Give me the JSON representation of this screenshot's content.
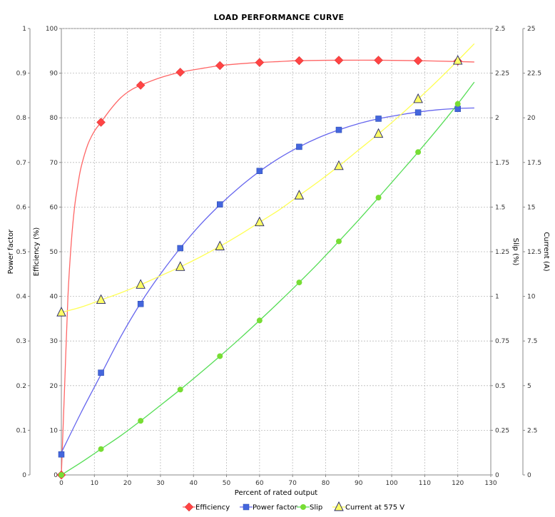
{
  "chart_data": {
    "type": "line",
    "title": "LOAD PERFORMANCE CURVE",
    "xlabel": "Percent of rated output",
    "xlim": [
      0,
      130
    ],
    "xticks": [
      0,
      10,
      20,
      30,
      40,
      50,
      60,
      70,
      80,
      90,
      100,
      110,
      120,
      130
    ],
    "grid": true,
    "legend_position": "bottom-center",
    "axes": {
      "power_factor": {
        "label": "Power factor",
        "side": "left-outer",
        "lim": [
          0,
          1
        ],
        "ticks": [
          0,
          0.1,
          0.2,
          0.3,
          0.4,
          0.5,
          0.6,
          0.7,
          0.8,
          0.9,
          1
        ]
      },
      "efficiency": {
        "label": "Efficiency (%)",
        "side": "left-inner",
        "lim": [
          0,
          100
        ],
        "ticks": [
          0,
          10,
          20,
          30,
          40,
          50,
          60,
          70,
          80,
          90,
          100
        ]
      },
      "slip": {
        "label": "Slip (%)",
        "side": "right-inner",
        "lim": [
          0,
          2.5
        ],
        "ticks": [
          "0",
          "0.25",
          "0.5",
          "0.75",
          "1",
          "1.25",
          "1.5",
          "1.75",
          "2",
          "2.25",
          "2.5"
        ]
      },
      "current": {
        "label": "Current (A)",
        "side": "right-outer",
        "lim": [
          0,
          25
        ],
        "ticks": [
          "0",
          "2.5",
          "5",
          "7.5",
          "10",
          "12.5",
          "15",
          "17.5",
          "20",
          "22.5",
          "25"
        ]
      }
    },
    "series": [
      {
        "name": "Efficiency",
        "axis": "efficiency",
        "color": "#ff4444",
        "line_color": "#ff6666",
        "marker": "diamond",
        "points": [
          [
            0,
            0
          ],
          [
            12,
            79
          ],
          [
            24,
            87.3
          ],
          [
            36,
            90.2
          ],
          [
            48,
            91.7
          ],
          [
            60,
            92.4
          ],
          [
            72,
            92.8
          ],
          [
            84,
            92.9
          ],
          [
            96,
            92.9
          ],
          [
            108,
            92.8
          ],
          [
            120,
            92.7
          ]
        ],
        "curve": [
          [
            0,
            0
          ],
          [
            1,
            20
          ],
          [
            2,
            40
          ],
          [
            3,
            52
          ],
          [
            4,
            60
          ],
          [
            5,
            65
          ],
          [
            6,
            69
          ],
          [
            8,
            74
          ],
          [
            10,
            77
          ],
          [
            12,
            79
          ],
          [
            15,
            82
          ],
          [
            18,
            84.5
          ],
          [
            21,
            86.2
          ],
          [
            24,
            87.3
          ],
          [
            30,
            89
          ],
          [
            36,
            90.2
          ],
          [
            42,
            91
          ],
          [
            48,
            91.7
          ],
          [
            54,
            92.1
          ],
          [
            60,
            92.4
          ],
          [
            66,
            92.6
          ],
          [
            72,
            92.8
          ],
          [
            84,
            92.9
          ],
          [
            96,
            92.9
          ],
          [
            108,
            92.8
          ],
          [
            120,
            92.6
          ],
          [
            125,
            92.5
          ]
        ]
      },
      {
        "name": "Power factor",
        "axis": "power_factor",
        "color": "#4466dd",
        "line_color": "#6666ee",
        "marker": "square",
        "points": [
          [
            0,
            0.046
          ],
          [
            12,
            0.229
          ],
          [
            24,
            0.383
          ],
          [
            36,
            0.508
          ],
          [
            48,
            0.606
          ],
          [
            60,
            0.681
          ],
          [
            72,
            0.735
          ],
          [
            84,
            0.773
          ],
          [
            96,
            0.798
          ],
          [
            108,
            0.812
          ],
          [
            120,
            0.82
          ]
        ],
        "curve": [
          [
            0,
            0.05
          ],
          [
            6,
            0.14
          ],
          [
            12,
            0.225
          ],
          [
            18,
            0.31
          ],
          [
            24,
            0.385
          ],
          [
            30,
            0.45
          ],
          [
            36,
            0.508
          ],
          [
            42,
            0.56
          ],
          [
            48,
            0.605
          ],
          [
            54,
            0.645
          ],
          [
            60,
            0.68
          ],
          [
            66,
            0.71
          ],
          [
            72,
            0.735
          ],
          [
            78,
            0.756
          ],
          [
            84,
            0.773
          ],
          [
            90,
            0.787
          ],
          [
            96,
            0.798
          ],
          [
            102,
            0.806
          ],
          [
            108,
            0.813
          ],
          [
            114,
            0.818
          ],
          [
            120,
            0.821
          ],
          [
            125,
            0.822
          ]
        ]
      },
      {
        "name": "Slip",
        "axis": "slip",
        "color": "#77dd33",
        "line_color": "#55dd55",
        "marker": "circle",
        "points": [
          [
            0,
            0
          ],
          [
            12,
            0.145
          ],
          [
            24,
            0.303
          ],
          [
            36,
            0.478
          ],
          [
            48,
            0.665
          ],
          [
            60,
            0.865
          ],
          [
            72,
            1.078
          ],
          [
            84,
            1.308
          ],
          [
            96,
            1.553
          ],
          [
            108,
            1.808
          ],
          [
            120,
            2.078
          ]
        ],
        "curve": [
          [
            0,
            0
          ],
          [
            6,
            0.07
          ],
          [
            12,
            0.145
          ],
          [
            18,
            0.22
          ],
          [
            24,
            0.303
          ],
          [
            30,
            0.39
          ],
          [
            36,
            0.478
          ],
          [
            42,
            0.57
          ],
          [
            48,
            0.665
          ],
          [
            54,
            0.763
          ],
          [
            60,
            0.865
          ],
          [
            66,
            0.97
          ],
          [
            72,
            1.078
          ],
          [
            78,
            1.19
          ],
          [
            84,
            1.308
          ],
          [
            90,
            1.428
          ],
          [
            96,
            1.553
          ],
          [
            102,
            1.68
          ],
          [
            108,
            1.808
          ],
          [
            114,
            1.94
          ],
          [
            120,
            2.078
          ],
          [
            125,
            2.2
          ]
        ]
      },
      {
        "name": "Current at 575 V",
        "axis": "current",
        "color": "#ffff66",
        "line_color": "#ffff55",
        "marker": "triangle",
        "points": [
          [
            0,
            9.1
          ],
          [
            12,
            9.8
          ],
          [
            24,
            10.65
          ],
          [
            36,
            11.65
          ],
          [
            48,
            12.8
          ],
          [
            60,
            14.15
          ],
          [
            72,
            15.65
          ],
          [
            84,
            17.3
          ],
          [
            96,
            19.1
          ],
          [
            108,
            21.05
          ],
          [
            120,
            23.2
          ]
        ],
        "curve": [
          [
            0,
            9.1
          ],
          [
            6,
            9.4
          ],
          [
            12,
            9.8
          ],
          [
            18,
            10.2
          ],
          [
            24,
            10.65
          ],
          [
            30,
            11.15
          ],
          [
            36,
            11.65
          ],
          [
            42,
            12.2
          ],
          [
            48,
            12.8
          ],
          [
            54,
            13.45
          ],
          [
            60,
            14.15
          ],
          [
            66,
            14.85
          ],
          [
            72,
            15.65
          ],
          [
            78,
            16.45
          ],
          [
            84,
            17.3
          ],
          [
            90,
            18.2
          ],
          [
            96,
            19.1
          ],
          [
            102,
            20.05
          ],
          [
            108,
            21.05
          ],
          [
            114,
            22.1
          ],
          [
            120,
            23.2
          ],
          [
            125,
            24.15
          ]
        ]
      }
    ]
  }
}
